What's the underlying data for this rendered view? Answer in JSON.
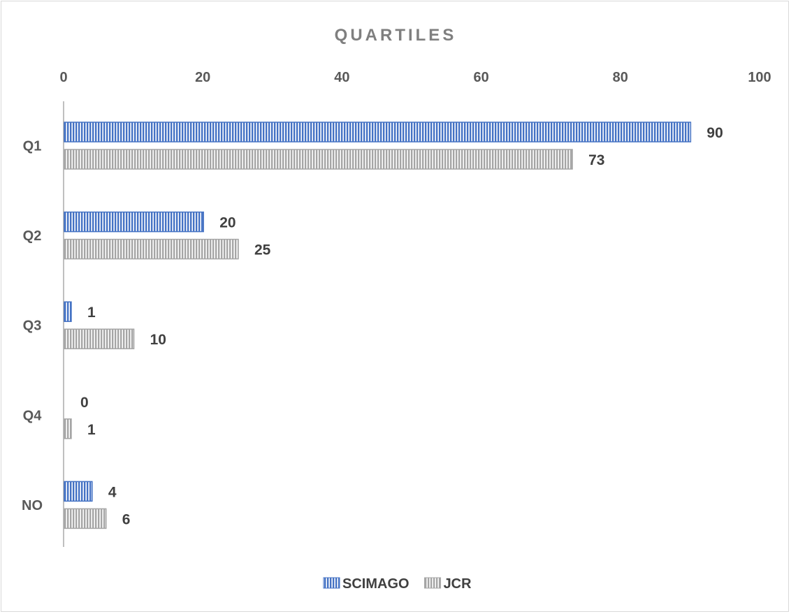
{
  "chart_data": {
    "type": "bar",
    "orientation": "horizontal",
    "title": "QUARTILES",
    "categories": [
      "Q1",
      "Q2",
      "Q3",
      "Q4",
      "NO"
    ],
    "series": [
      {
        "name": "SCIMAGO",
        "values": [
          90,
          20,
          1,
          0,
          4
        ],
        "color": "#4472c4",
        "pattern": "vertical-stripes"
      },
      {
        "name": "JCR",
        "values": [
          73,
          25,
          10,
          1,
          6
        ],
        "color": "#a5a5a5",
        "pattern": "vertical-stripes"
      }
    ],
    "value_axis": {
      "position": "top",
      "min": 0,
      "max": 100,
      "ticks": [
        0,
        20,
        40,
        60,
        80,
        100
      ]
    },
    "data_labels": true,
    "grid": false,
    "legend": "bottom"
  }
}
